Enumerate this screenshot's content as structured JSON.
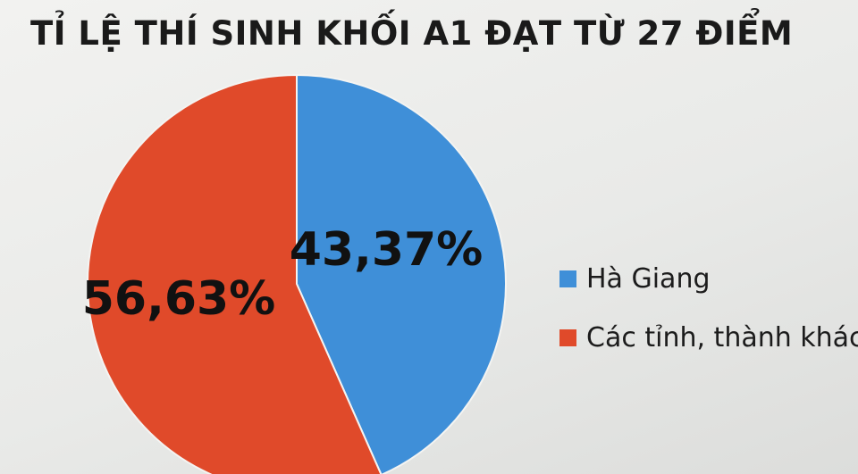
{
  "chart_data": {
    "type": "pie",
    "title": "TỈ LỆ THÍ SINH KHỐI A1 ĐẠT TỪ 27 ĐIỂM",
    "categories": [
      "Hà Giang",
      "Các tỉnh, thành khác"
    ],
    "values": [
      43.37,
      56.63
    ],
    "value_labels": [
      "43,37%",
      "56,63%"
    ],
    "colors": [
      "#3f8fd8",
      "#e04a2a"
    ],
    "legend_position": "right"
  }
}
